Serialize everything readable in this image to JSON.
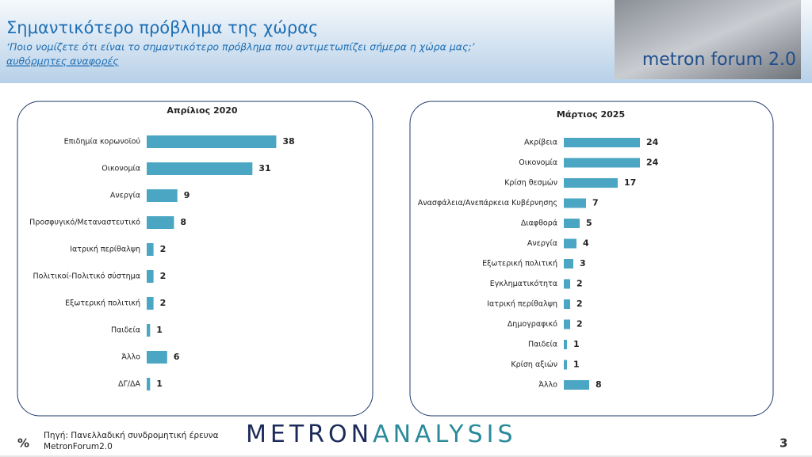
{
  "header": {
    "title": "Σημαντικότερο πρόβλημα της χώρας",
    "subtitle": "‘Ποιο νομίζετε ότι  είναι το σημαντικότερο πρόβλημα που αντιμετωπίζει σήμερα η χώρα μας;’",
    "note": "αυθόρμητες αναφορές",
    "logo_text": "metron forum 2.0"
  },
  "chart_data": [
    {
      "type": "bar",
      "orientation": "horizontal",
      "title": "Απρίλιος 2020",
      "color": "#4ba6c4",
      "categories": [
        "Επιδημία κορωνοϊού",
        "Οικονομία",
        "Ανεργία",
        "Προσφυγικό/Μεταναστευτικό",
        "Ιατρική περίθαλψη",
        "Πολιτικοί-Πολιτικό σύστημα",
        "Εξωτερική πολιτική",
        "Παιδεία",
        "Άλλο",
        "ΔΓ/ΔΑ"
      ],
      "values": [
        38,
        31,
        9,
        8,
        2,
        2,
        2,
        1,
        6,
        1
      ]
    },
    {
      "type": "bar",
      "orientation": "horizontal",
      "title": "Μάρτιος 2025",
      "color": "#4ba6c4",
      "categories": [
        "Ακρίβεια",
        "Οικονομία",
        "Κρίση θεσμών",
        "Ανασφάλεια/Ανεπάρκεια Κυβέρνησης",
        "Διαφθορά",
        "Ανεργία",
        "Εξωτερική πολιτική",
        "Εγκληματικότητα",
        "Ιατρική περίθαλψη",
        "Δημογραφικό",
        "Παιδεία",
        "Κρίση αξιών",
        "Άλλο"
      ],
      "values": [
        24,
        24,
        17,
        7,
        5,
        4,
        3,
        2,
        2,
        2,
        1,
        1,
        8
      ]
    }
  ],
  "footer": {
    "unit": "%",
    "source_1": "Πηγή: Πανελλαδική συνδρομητική έρευνα",
    "source_2": "MetronForum2.0",
    "logo_1": "METRON",
    "logo_2": "ANALYSIS",
    "page": "3"
  }
}
